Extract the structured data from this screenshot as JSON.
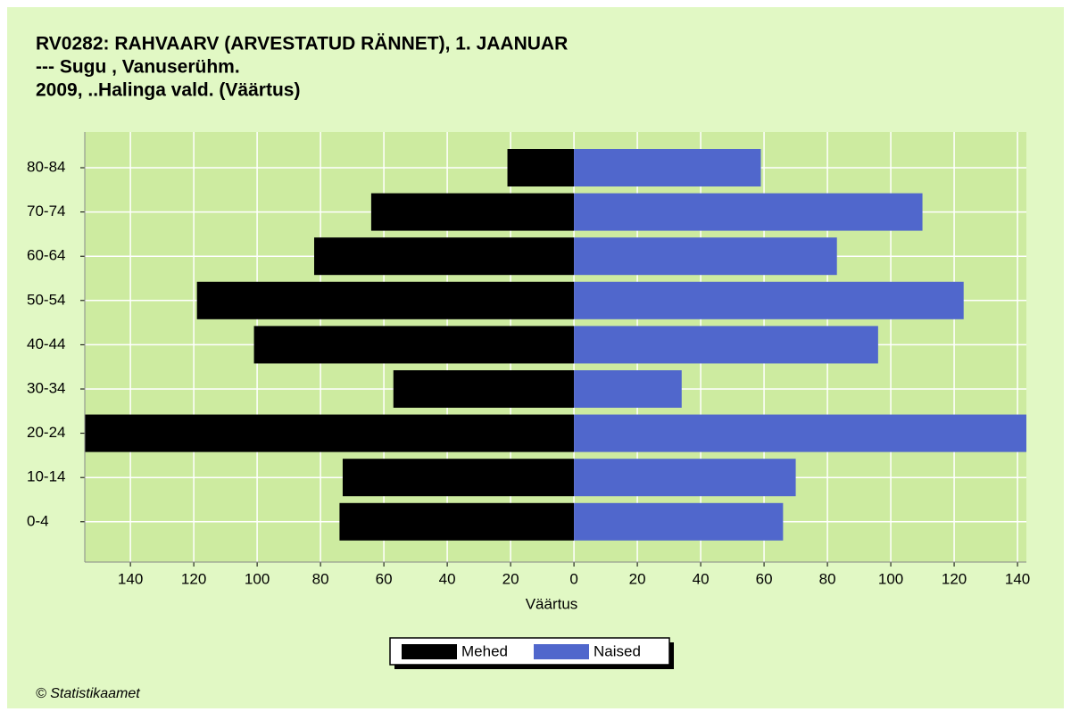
{
  "chart_data": {
    "type": "pyramid",
    "title": [
      "RV0282: RAHVAARV (ARVESTATUD RÄNNET), 1. JAANUAR",
      "--- Sugu , Vanuserühm.",
      "2009, ..Halinga vald. (Väärtus)"
    ],
    "xlabel": "Väärtus",
    "categories": [
      "80-84",
      "70-74",
      "60-64",
      "50-54",
      "40-44",
      "30-34",
      "20-24",
      "10-14",
      "0-4"
    ],
    "series": [
      {
        "name": "Mehed",
        "color": "#000000",
        "values": [
          -21,
          -64,
          -82,
          -119,
          -101,
          -57,
          -158,
          -73,
          -74
        ]
      },
      {
        "name": "Naised",
        "color": "#5067cc",
        "values": [
          59,
          110,
          83,
          123,
          96,
          34,
          146,
          70,
          66
        ]
      }
    ],
    "xlim": [
      -154.4,
      142.8
    ],
    "xticks": [
      {
        "value": -140,
        "label": "140"
      },
      {
        "value": -120,
        "label": "120"
      },
      {
        "value": -100,
        "label": "100"
      },
      {
        "value": -80,
        "label": "80"
      },
      {
        "value": -60,
        "label": "60"
      },
      {
        "value": -40,
        "label": "40"
      },
      {
        "value": -20,
        "label": "20"
      },
      0,
      20,
      40,
      60,
      80,
      100,
      120,
      140
    ],
    "grid": true,
    "legend": "bottom",
    "footer": "© Statistikaamet"
  }
}
